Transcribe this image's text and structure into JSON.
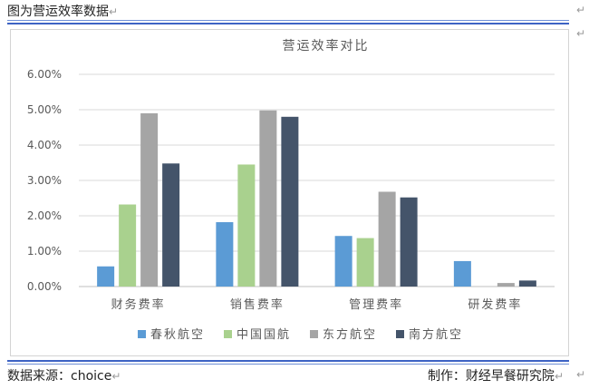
{
  "header": {
    "caption": "图为营运效率数据"
  },
  "footer": {
    "source": "数据来源：choice",
    "credit": "制作：财经早餐研究院"
  },
  "colors": {
    "series": [
      "#5b9bd5",
      "#a9d18e",
      "#a5a5a5",
      "#44546a"
    ],
    "grid": "#d9d9d9",
    "rule": "#3d63c4"
  },
  "chart_data": {
    "type": "bar",
    "title": "营运效率对比",
    "categories": [
      "财务费率",
      "销售费率",
      "管理费率",
      "研发费率"
    ],
    "series": [
      {
        "name": "春秋航空",
        "values": [
          0.57,
          1.82,
          1.43,
          0.72
        ]
      },
      {
        "name": "中国国航",
        "values": [
          2.32,
          3.45,
          1.37,
          0.0
        ]
      },
      {
        "name": "东方航空",
        "values": [
          4.9,
          4.98,
          2.68,
          0.1
        ]
      },
      {
        "name": "南方航空",
        "values": [
          3.48,
          4.8,
          2.52,
          0.17
        ]
      }
    ],
    "ylim": [
      0,
      6
    ],
    "yticks": [
      "0.00%",
      "1.00%",
      "2.00%",
      "3.00%",
      "4.00%",
      "5.00%",
      "6.00%"
    ],
    "grid": true,
    "legend_position": "bottom"
  }
}
